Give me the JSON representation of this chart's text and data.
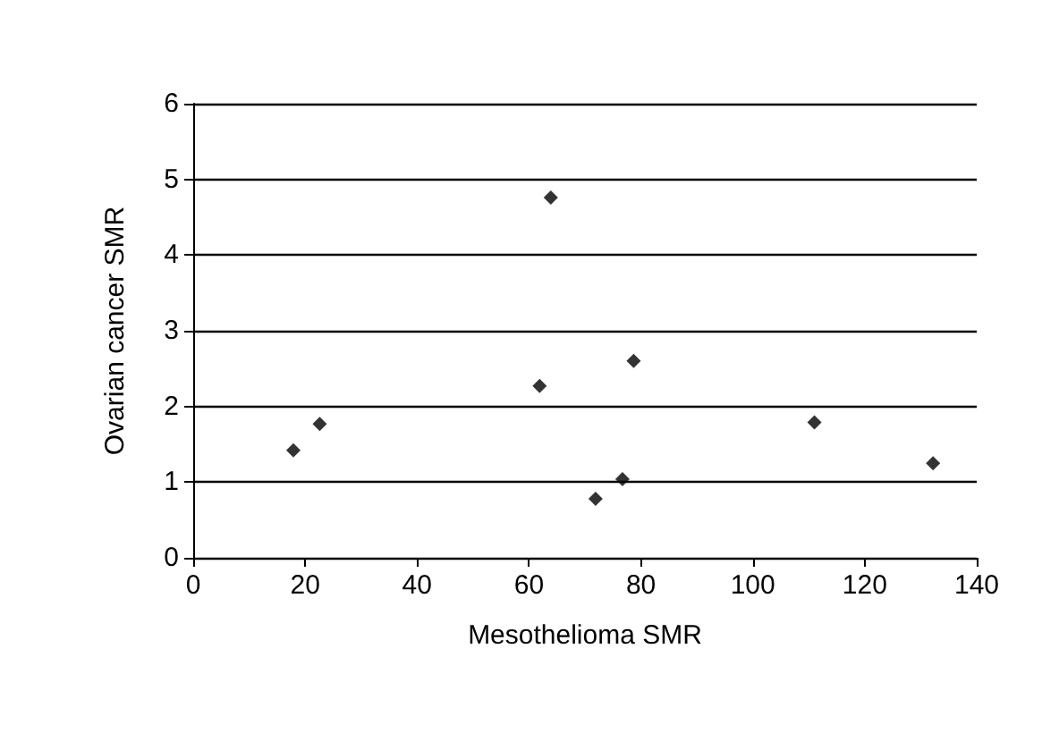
{
  "chart_data": {
    "type": "scatter",
    "xlabel": "Mesothelioma SMR",
    "ylabel": "Ovarian cancer SMR",
    "x": [
      17.9,
      22.6,
      61.9,
      63.9,
      71.9,
      76.7,
      78.7,
      111,
      132.2
    ],
    "values": [
      1.42,
      1.77,
      2.27,
      4.76,
      0.78,
      1.04,
      2.6,
      1.79,
      1.25
    ],
    "color": "#000000",
    "marker": "diamond",
    "xlim": [
      0,
      140
    ],
    "xticks": [
      0,
      20,
      40,
      60,
      80,
      100,
      120,
      140
    ],
    "ylim": [
      0,
      6
    ],
    "yticks": [
      0,
      1,
      2,
      3,
      4,
      5,
      6
    ],
    "grid": "y"
  }
}
